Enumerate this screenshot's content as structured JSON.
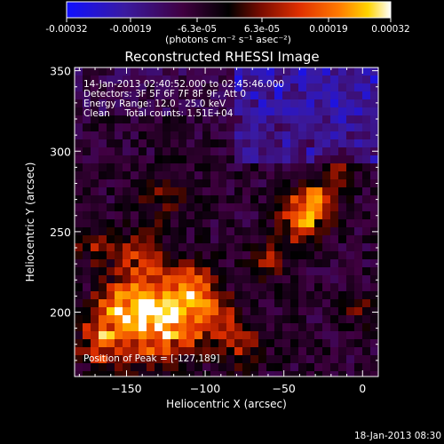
{
  "colorbar": {
    "ticks": [
      "-0.00032",
      "-0.00019",
      "-6.3e-05",
      "6.3e-05",
      "0.00019",
      "0.00032"
    ],
    "unit": "(photons cm⁻² s⁻¹ asec⁻²)",
    "colors": [
      "#1010ff",
      "#3a1aa0",
      "#400040",
      "#000000",
      "#7a0c00",
      "#e03000",
      "#ff7a00",
      "#ffd400",
      "#ffffff"
    ]
  },
  "plot": {
    "title": "Reconstructed RHESSI Image",
    "xlabel": "Heliocentric X (arcsec)",
    "ylabel": "Heliocentric Y (arcsec)",
    "xlim": [
      -183,
      10
    ],
    "ylim": [
      160,
      352
    ],
    "xticks": [
      -150,
      -100,
      -50,
      0
    ],
    "yticks": [
      200,
      250,
      300,
      350
    ],
    "xtick_labels": [
      "−150",
      "−100",
      "−50",
      "0"
    ],
    "ytick_labels": [
      "200",
      "250",
      "300",
      "350"
    ],
    "info_lines": [
      "14-Jan-2013 02:40:52.000 to 02:45:46.000",
      "Detectors: 3F 5F 6F 7F 8F 9F, Att 0",
      "Energy Range: 12.0 - 25.0 keV",
      "Clean     Total counts: 1.51E+04"
    ],
    "peak_label": "Position of Peak = [-127,189]",
    "peak": [
      -127,
      189
    ]
  },
  "footer": {
    "timestamp": "18-Jan-2013 08:30"
  }
}
